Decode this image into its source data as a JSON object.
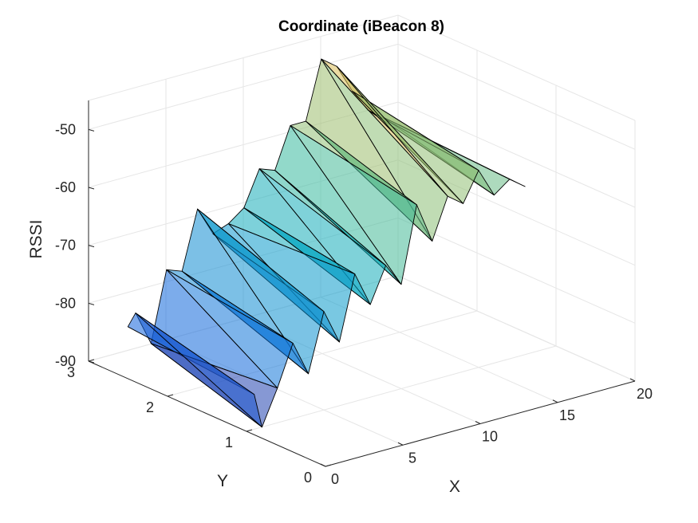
{
  "chart_data": {
    "type": "surface",
    "title": "Coordinate (iBeacon 8)",
    "xlabel": "X",
    "ylabel": "Y",
    "zlabel": "RSSI",
    "xlim": [
      0,
      20
    ],
    "ylim": [
      0,
      3
    ],
    "zlim": [
      -90,
      -45
    ],
    "xticks": [
      "0",
      "5",
      "10",
      "15",
      "20"
    ],
    "yticks": [
      "0",
      "1",
      "2",
      "3"
    ],
    "zticks": [
      "-90",
      "-80",
      "-70",
      "-60",
      "-50"
    ],
    "grid": true,
    "colormap": "parula",
    "face_alpha": 0.55,
    "edge_color": "#000000",
    "surface": {
      "y_front": 1.0,
      "y_back": 2.6,
      "samples": [
        {
          "x": 0.5,
          "rssi_front": -84,
          "rssi_back": -82
        },
        {
          "x": 1.0,
          "rssi_front": -90,
          "rssi_back": -80
        },
        {
          "x": 2.0,
          "rssi_front": -84,
          "rssi_back": -86
        },
        {
          "x": 3.0,
          "rssi_front": -77,
          "rssi_back": -74
        },
        {
          "x": 4.0,
          "rssi_front": -83,
          "rssi_back": -75
        },
        {
          "x": 5.0,
          "rssi_front": -73,
          "rssi_back": -65
        },
        {
          "x": 6.0,
          "rssi_front": -79,
          "rssi_back": -70
        },
        {
          "x": 7.0,
          "rssi_front": -68,
          "rssi_back": -69
        },
        {
          "x": 8.0,
          "rssi_front": -74,
          "rssi_back": -67
        },
        {
          "x": 9.0,
          "rssi_front": -68,
          "rssi_back": -61
        },
        {
          "x": 10.0,
          "rssi_front": -72,
          "rssi_back": -62
        },
        {
          "x": 11.0,
          "rssi_front": -59,
          "rssi_back": -55
        },
        {
          "x": 12.0,
          "rssi_front": -66,
          "rssi_back": -55
        },
        {
          "x": 13.0,
          "rssi_front": -59,
          "rssi_back": -45
        },
        {
          "x": 14.0,
          "rssi_front": -61,
          "rssi_back": -47
        },
        {
          "x": 15.0,
          "rssi_front": -56,
          "rssi_back": -52
        },
        {
          "x": 16.0,
          "rssi_front": -61,
          "rssi_back": -56
        },
        {
          "x": 17.0,
          "rssi_front": -59,
          "rssi_back": -58
        },
        {
          "x": 18.0,
          "rssi_front": -61,
          "rssi_back": -60
        }
      ]
    }
  }
}
